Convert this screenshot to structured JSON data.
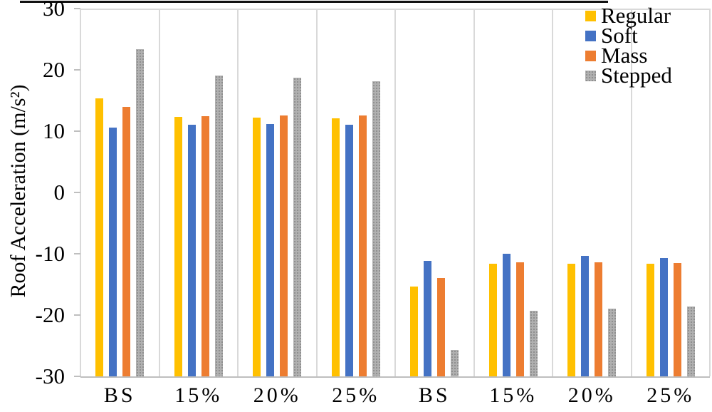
{
  "chart_data": {
    "type": "bar",
    "title": "",
    "xlabel": "",
    "ylabel": "Roof Acceleration (m/s²)",
    "ylim": [
      -30,
      30
    ],
    "yticks": [
      30,
      20,
      10,
      0,
      -10,
      -20,
      -30
    ],
    "bar_base": -30,
    "grid": "vertical-category-separators, top and bottom border lines",
    "legend_position": "top-right",
    "categories": [
      "BS",
      "15%",
      "20%",
      "25%",
      "BS",
      "15%",
      "20%",
      "25%"
    ],
    "series": [
      {
        "name": "Regular",
        "color": "#FFC000",
        "pattern": "solid",
        "values": [
          15.4,
          12.3,
          12.2,
          12.1,
          -15.4,
          -11.6,
          -11.6,
          -11.6
        ]
      },
      {
        "name": "Soft",
        "color": "#4472C4",
        "pattern": "solid",
        "values": [
          10.6,
          11.1,
          11.2,
          11.1,
          -11.2,
          -10.0,
          -10.4,
          -10.7
        ]
      },
      {
        "name": "Mass",
        "color": "#ED7D31",
        "pattern": "solid",
        "values": [
          14.0,
          12.5,
          12.6,
          12.6,
          -13.9,
          -11.4,
          -11.4,
          -11.5
        ]
      },
      {
        "name": "Stepped",
        "color": "#A6A6A6",
        "pattern": "speckled",
        "values": [
          23.4,
          19.1,
          18.7,
          18.1,
          -25.7,
          -19.3,
          -18.9,
          -18.6
        ]
      }
    ],
    "colors": {
      "gridline": "#d9d9d9",
      "axis_line": "#bfbfbf",
      "text": "#000000",
      "figure_top_border": "#111111"
    }
  }
}
